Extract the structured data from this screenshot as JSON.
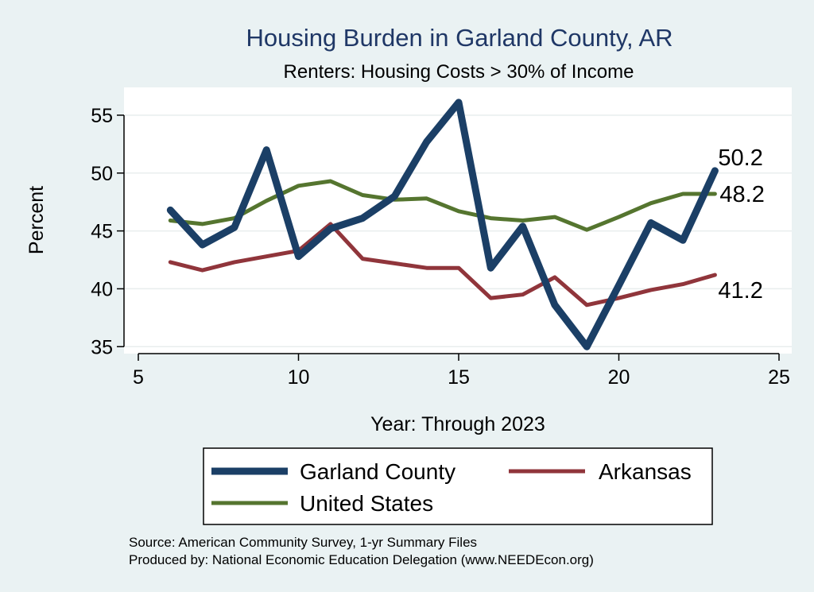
{
  "chart_data": {
    "type": "line",
    "title": "Housing Burden in Garland County, AR",
    "subtitle": "Renters: Housing Costs > 30% of Income",
    "xlabel": "Year: Through 2023",
    "ylabel": "Percent",
    "xlim": [
      5,
      25
    ],
    "ylim": [
      34.4,
      57.4
    ],
    "xticks": [
      5,
      10,
      15,
      20,
      25
    ],
    "yticks": [
      35,
      40,
      45,
      50,
      55
    ],
    "grid": true,
    "legend_position": "bottom",
    "x": [
      6,
      7,
      8,
      9,
      10,
      11,
      12,
      13,
      14,
      15,
      16,
      17,
      18,
      19,
      20,
      21,
      22,
      23
    ],
    "series": [
      {
        "name": "Garland County",
        "color": "#1b3f66",
        "line_weight": "thick",
        "end_label": "50.2",
        "values": [
          46.8,
          43.8,
          45.3,
          52.0,
          42.8,
          45.2,
          46.1,
          48.0,
          52.7,
          56.1,
          41.8,
          45.4,
          38.6,
          35.0,
          40.3,
          45.7,
          44.2,
          50.2
        ]
      },
      {
        "name": "Arkansas",
        "color": "#90353b",
        "line_weight": "medium",
        "end_label": "41.2",
        "values": [
          42.3,
          41.6,
          42.3,
          42.8,
          43.3,
          45.6,
          42.6,
          42.2,
          41.8,
          41.8,
          39.2,
          39.5,
          41.0,
          38.6,
          39.2,
          39.9,
          40.4,
          41.2
        ]
      },
      {
        "name": "United States",
        "color": "#55752f",
        "line_weight": "medium",
        "end_label": "48.2",
        "values": [
          45.9,
          45.6,
          46.1,
          47.6,
          48.9,
          49.3,
          48.1,
          47.7,
          47.8,
          46.7,
          46.1,
          45.9,
          46.2,
          45.1,
          46.2,
          47.4,
          48.2,
          48.2
        ]
      }
    ],
    "legend_order": [
      "Garland County",
      "Arkansas",
      "United States"
    ],
    "source_lines": [
      "Source: American Community Survey, 1-yr Summary Files",
      "Produced by: National Economic Education Delegation (www.NEEDEcon.org)"
    ]
  }
}
